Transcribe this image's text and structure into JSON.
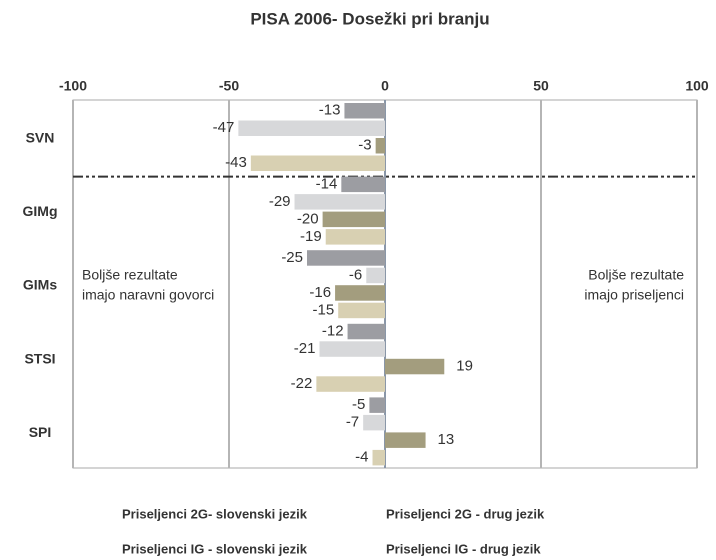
{
  "chart_data": {
    "type": "hbar",
    "title": "PISA 2006- Dosežki pri branju",
    "categories": [
      "SVN",
      "GIMg",
      "GIMs",
      "STSI",
      "SPI"
    ],
    "series": [
      {
        "name": "Priseljenci 2G- slovenski jezik",
        "color": "#9c9da2",
        "values": [
          -13,
          -14,
          -25,
          -12,
          -5
        ]
      },
      {
        "name": "Priseljenci IG - slovenski jezik",
        "color": "#d7d8da",
        "values": [
          -47,
          -29,
          -6,
          -21,
          -7
        ]
      },
      {
        "name": "Priseljenci 2G - drug jezik",
        "color": "#a39d7e",
        "values": [
          -3,
          -20,
          -16,
          19,
          13
        ]
      },
      {
        "name": "Priseljenci IG - drug jezik",
        "color": "#d8d0b2",
        "values": [
          -43,
          -19,
          -15,
          -22,
          -4
        ]
      }
    ],
    "xlim": [
      -100,
      100
    ],
    "xticks": [
      -100,
      -50,
      0,
      50,
      100
    ],
    "grid": true,
    "annotations": [
      [
        "Boljše rezultate",
        "imajo naravni govorci"
      ],
      [
        "Boljše rezultate",
        "imajo priseljenci"
      ]
    ]
  }
}
